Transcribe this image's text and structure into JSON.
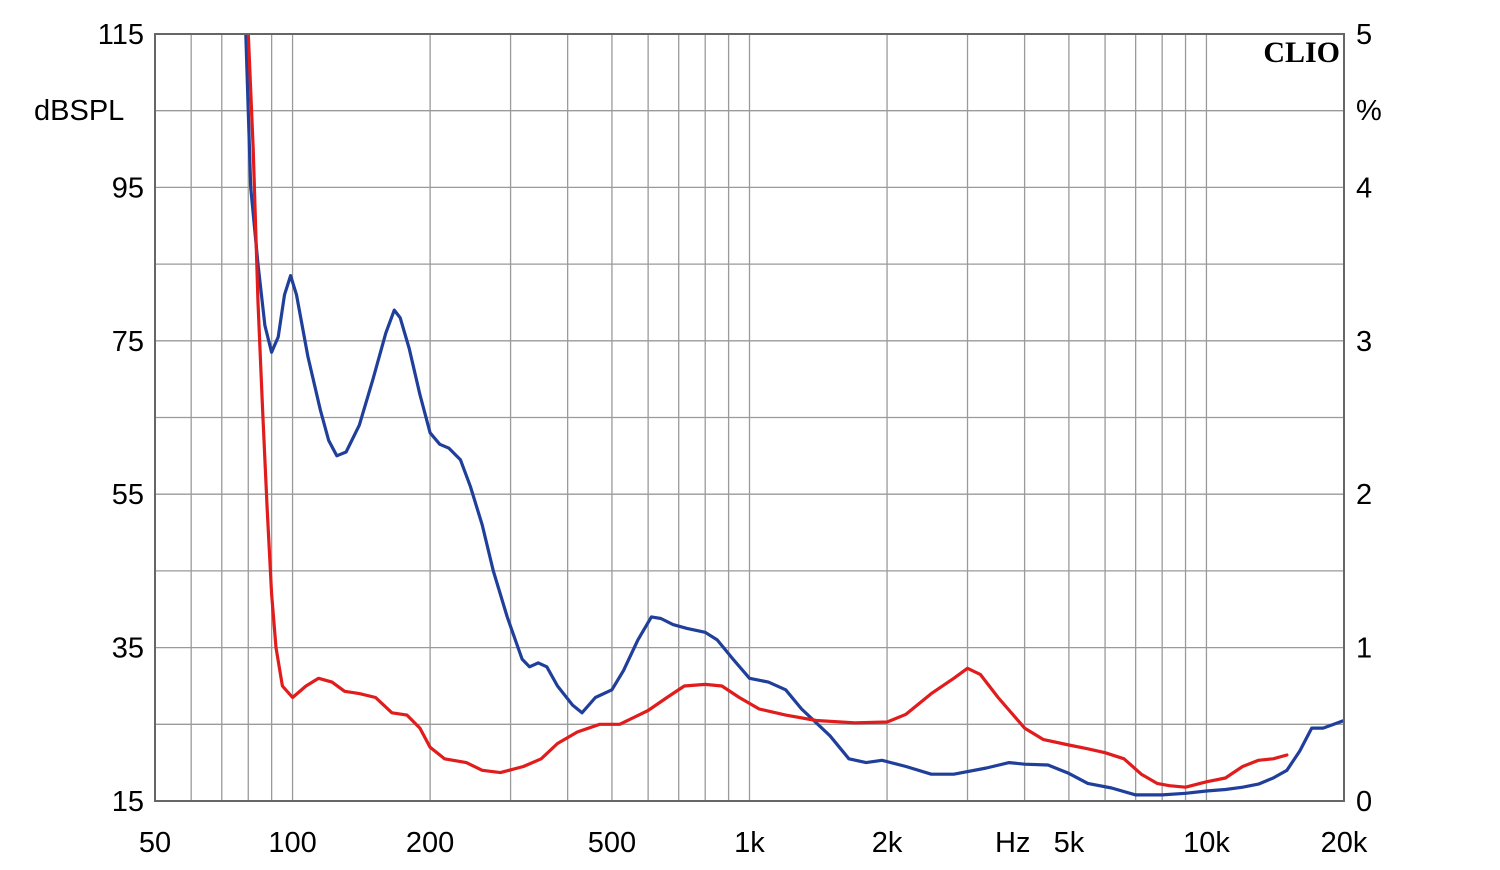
{
  "chart_data": {
    "type": "line",
    "brand_label": "CLIO",
    "x_unit_label": "Hz",
    "y_left_label": "dBSPL",
    "y_right_label": "%",
    "x_scale": "log",
    "xlim": [
      50,
      20000
    ],
    "ylim_left": [
      15,
      115
    ],
    "ylim_right": [
      0,
      5
    ],
    "grid": true,
    "x_ticks": [
      {
        "value": 50,
        "label": "50"
      },
      {
        "value": 100,
        "label": "100"
      },
      {
        "value": 200,
        "label": "200"
      },
      {
        "value": 500,
        "label": "500"
      },
      {
        "value": 1000,
        "label": "1k"
      },
      {
        "value": 2000,
        "label": "2k"
      },
      {
        "value": 5000,
        "label": "5k"
      },
      {
        "value": 10000,
        "label": "10k"
      },
      {
        "value": 20000,
        "label": "20k"
      }
    ],
    "y_left_ticks": [
      {
        "value": 115,
        "label": "115"
      },
      {
        "value": 95,
        "label": "95"
      },
      {
        "value": 75,
        "label": "75"
      },
      {
        "value": 55,
        "label": "55"
      },
      {
        "value": 35,
        "label": "35"
      },
      {
        "value": 15,
        "label": "15"
      }
    ],
    "y_right_ticks": [
      {
        "value": 5,
        "label": "5"
      },
      {
        "value": 4,
        "label": "4"
      },
      {
        "value": 3,
        "label": "3"
      },
      {
        "value": 2,
        "label": "2"
      },
      {
        "value": 1,
        "label": "1"
      },
      {
        "value": 0,
        "label": "0"
      }
    ],
    "series": [
      {
        "color": "#1f3f9a",
        "axis": "left",
        "points": [
          [
            79,
            115
          ],
          [
            81,
            95
          ],
          [
            84,
            85
          ],
          [
            87,
            77
          ],
          [
            90,
            73.5
          ],
          [
            93,
            75.5
          ],
          [
            96,
            81
          ],
          [
            99,
            83.5
          ],
          [
            102,
            81
          ],
          [
            108,
            73
          ],
          [
            115,
            66
          ],
          [
            120,
            62
          ],
          [
            125,
            60
          ],
          [
            131,
            60.5
          ],
          [
            140,
            64
          ],
          [
            150,
            70
          ],
          [
            160,
            76
          ],
          [
            167,
            79
          ],
          [
            172,
            78
          ],
          [
            180,
            74
          ],
          [
            190,
            68
          ],
          [
            200,
            63
          ],
          [
            210,
            61.5
          ],
          [
            220,
            61
          ],
          [
            233,
            59.5
          ],
          [
            245,
            56
          ],
          [
            260,
            51
          ],
          [
            275,
            45
          ],
          [
            295,
            39
          ],
          [
            318,
            33.5
          ],
          [
            330,
            32.5
          ],
          [
            345,
            33
          ],
          [
            360,
            32.5
          ],
          [
            380,
            30
          ],
          [
            410,
            27.5
          ],
          [
            430,
            26.5
          ],
          [
            460,
            28.5
          ],
          [
            500,
            29.5
          ],
          [
            530,
            32
          ],
          [
            570,
            36
          ],
          [
            610,
            39
          ],
          [
            640,
            38.8
          ],
          [
            680,
            38
          ],
          [
            730,
            37.5
          ],
          [
            800,
            37
          ],
          [
            850,
            36
          ],
          [
            920,
            33.5
          ],
          [
            1000,
            31
          ],
          [
            1100,
            30.5
          ],
          [
            1200,
            29.5
          ],
          [
            1300,
            27
          ],
          [
            1500,
            23.5
          ],
          [
            1650,
            20.5
          ],
          [
            1800,
            20
          ],
          [
            1950,
            20.3
          ],
          [
            2200,
            19.5
          ],
          [
            2500,
            18.5
          ],
          [
            2800,
            18.5
          ],
          [
            3300,
            19.3
          ],
          [
            3700,
            20
          ],
          [
            4000,
            19.8
          ],
          [
            4500,
            19.7
          ],
          [
            5000,
            18.6
          ],
          [
            5500,
            17.3
          ],
          [
            6200,
            16.7
          ],
          [
            7000,
            15.8
          ],
          [
            8000,
            15.8
          ],
          [
            9000,
            16
          ],
          [
            10000,
            16.3
          ],
          [
            11000,
            16.5
          ],
          [
            12000,
            16.8
          ],
          [
            13000,
            17.2
          ],
          [
            14000,
            18
          ],
          [
            15000,
            19
          ],
          [
            16000,
            21.5
          ],
          [
            17000,
            24.5
          ],
          [
            18000,
            24.5
          ],
          [
            19000,
            25
          ],
          [
            20000,
            25.5
          ]
        ]
      },
      {
        "color": "#e01c1c",
        "axis": "left",
        "points": [
          [
            80,
            115
          ],
          [
            82,
            100
          ],
          [
            84,
            80
          ],
          [
            86,
            66
          ],
          [
            88,
            53
          ],
          [
            90,
            42
          ],
          [
            92,
            35
          ],
          [
            95,
            30
          ],
          [
            100,
            28.5
          ],
          [
            107,
            30
          ],
          [
            114,
            31
          ],
          [
            122,
            30.5
          ],
          [
            130,
            29.3
          ],
          [
            140,
            29
          ],
          [
            152,
            28.5
          ],
          [
            165,
            26.5
          ],
          [
            178,
            26.2
          ],
          [
            190,
            24.5
          ],
          [
            200,
            22
          ],
          [
            215,
            20.5
          ],
          [
            240,
            20
          ],
          [
            260,
            19
          ],
          [
            285,
            18.7
          ],
          [
            320,
            19.5
          ],
          [
            350,
            20.5
          ],
          [
            380,
            22.5
          ],
          [
            420,
            24
          ],
          [
            470,
            25
          ],
          [
            520,
            25
          ],
          [
            600,
            26.8
          ],
          [
            660,
            28.5
          ],
          [
            720,
            30
          ],
          [
            800,
            30.2
          ],
          [
            870,
            30
          ],
          [
            950,
            28.5
          ],
          [
            1050,
            27
          ],
          [
            1200,
            26.2
          ],
          [
            1400,
            25.5
          ],
          [
            1700,
            25.2
          ],
          [
            2000,
            25.3
          ],
          [
            2200,
            26.3
          ],
          [
            2500,
            29
          ],
          [
            2800,
            31
          ],
          [
            3000,
            32.3
          ],
          [
            3200,
            31.5
          ],
          [
            3500,
            28.5
          ],
          [
            4000,
            24.5
          ],
          [
            4400,
            23
          ],
          [
            5000,
            22.3
          ],
          [
            5500,
            21.8
          ],
          [
            6000,
            21.3
          ],
          [
            6600,
            20.5
          ],
          [
            7200,
            18.5
          ],
          [
            7800,
            17.3
          ],
          [
            8300,
            17
          ],
          [
            9000,
            16.8
          ],
          [
            10000,
            17.5
          ],
          [
            11000,
            18
          ],
          [
            12000,
            19.5
          ],
          [
            13000,
            20.3
          ],
          [
            14000,
            20.5
          ],
          [
            15000,
            21
          ]
        ]
      }
    ]
  }
}
